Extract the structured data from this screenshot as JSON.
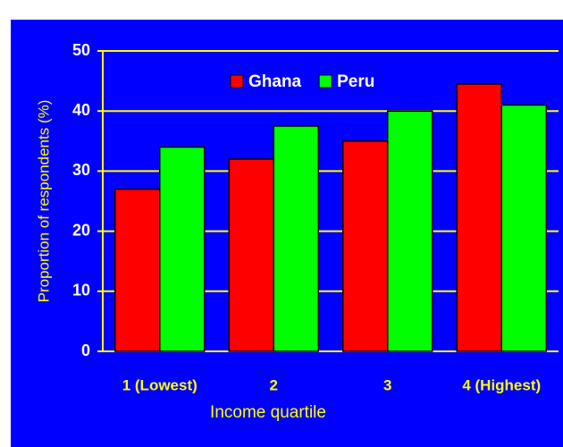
{
  "chart_data": {
    "type": "bar",
    "categories": [
      "1 (Lowest)",
      "2",
      "3",
      "4 (Highest)"
    ],
    "series": [
      {
        "name": "Ghana",
        "color": "#ff0000",
        "values": [
          27,
          32,
          35,
          44.5
        ]
      },
      {
        "name": "Peru",
        "color": "#00ff00",
        "values": [
          34,
          37.5,
          40,
          41
        ]
      }
    ],
    "x_label": "Income quartile",
    "y_label": "Proportion of respondents (%)",
    "ylim": [
      0,
      50
    ],
    "yticks": [
      0,
      10,
      20,
      30,
      40,
      50
    ],
    "grid": true,
    "legend": "top"
  }
}
